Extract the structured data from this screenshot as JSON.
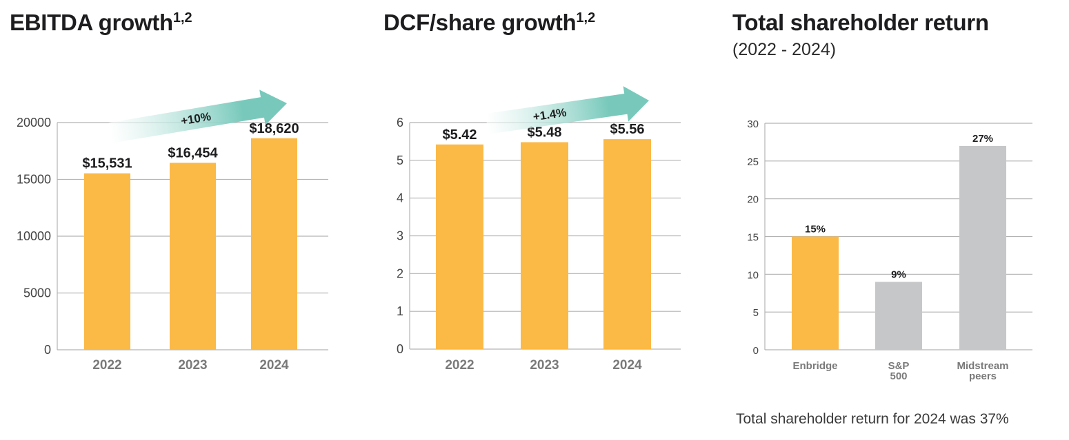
{
  "colors": {
    "bar_primary": "#fbb946",
    "bar_secondary": "#c6c7c8",
    "grid": "#b3b3b3",
    "arrow_start": "#ffffff",
    "arrow_end": "#78c9bb"
  },
  "chart_data": [
    {
      "type": "bar",
      "title": "EBITDA growth",
      "title_superscript": "1,2",
      "categories": [
        "2022",
        "2023",
        "2024"
      ],
      "values": [
        15531,
        16454,
        18620
      ],
      "data_labels": [
        "$15,531",
        "$16,454",
        "$18,620"
      ],
      "ylim": [
        0,
        20000
      ],
      "yticks": [
        0,
        5000,
        10000,
        15000,
        20000
      ],
      "ytick_labels": [
        "0",
        "5000",
        "10000",
        "15000",
        "20000"
      ],
      "xlabel": "",
      "ylabel": "",
      "grid": true,
      "bar_colors": [
        "primary",
        "primary",
        "primary"
      ],
      "annotation": {
        "type": "growth-arrow",
        "label": "+10%"
      }
    },
    {
      "type": "bar",
      "title": "DCF/share growth",
      "title_superscript": "1,2",
      "categories": [
        "2022",
        "2023",
        "2024"
      ],
      "values": [
        5.42,
        5.48,
        5.56
      ],
      "data_labels": [
        "$5.42",
        "$5.48",
        "$5.56"
      ],
      "ylim": [
        0,
        6
      ],
      "yticks": [
        0,
        1,
        2,
        3,
        4,
        5,
        6
      ],
      "ytick_labels": [
        "0",
        "1",
        "2",
        "3",
        "4",
        "5",
        "6"
      ],
      "xlabel": "",
      "ylabel": "",
      "grid": true,
      "bar_colors": [
        "primary",
        "primary",
        "primary"
      ],
      "annotation": {
        "type": "growth-arrow",
        "label": "+1.4%"
      }
    },
    {
      "type": "bar",
      "title": "Total shareholder return",
      "subtitle": "(2022 - 2024)",
      "categories": [
        [
          "Enbridge"
        ],
        [
          "S&P",
          "500"
        ],
        [
          "Midstream",
          "peers"
        ]
      ],
      "values": [
        15,
        9,
        27
      ],
      "data_labels": [
        "15%",
        "9%",
        "27%"
      ],
      "ylim": [
        0,
        30
      ],
      "yticks": [
        0,
        5,
        10,
        15,
        20,
        25,
        30
      ],
      "ytick_labels": [
        "0",
        "5",
        "10",
        "15",
        "20",
        "25",
        "30"
      ],
      "xlabel": "",
      "ylabel": "",
      "grid": true,
      "bar_colors": [
        "primary",
        "secondary",
        "secondary"
      ],
      "footnote": "Total shareholder return for 2024 was 37%"
    }
  ]
}
